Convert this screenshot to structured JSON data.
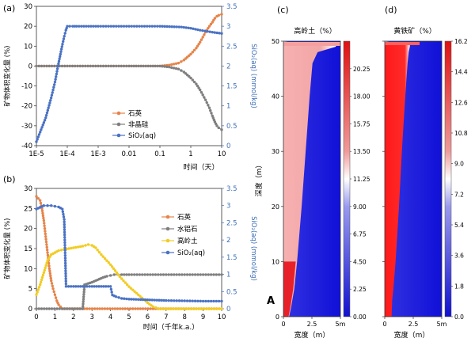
{
  "colors": {
    "quartz": "#e6844a",
    "amorphous": "#7f7f7f",
    "sio2": "#4a72c4",
    "gibbsite": "#7f7f7f",
    "kaolinite": "#f2cc22",
    "axis_right": "#3e6fb6",
    "red": "#e8202a",
    "white": "#ffffff",
    "blue": "#1f1fd8"
  },
  "chart_data": [
    {
      "id": "a",
      "type": "line",
      "panel_label": "(a)",
      "xlabel": "时间（天）",
      "ylabel": "矿物体积变化量 (%)",
      "ylabel_right": "SiO₂(aq) (mmol/kg)",
      "x_scale": "log",
      "xlim": [
        1e-05,
        10
      ],
      "ylim": [
        -40,
        30
      ],
      "ylim_right": [
        0,
        3.5
      ],
      "x_ticks": [
        1e-05,
        0.0001,
        0.001,
        0.01,
        0.1,
        1,
        10
      ],
      "x_tick_labels": [
        "1E-5",
        "1E-4",
        "1E-3",
        "0.01",
        "0.1",
        "1",
        "10"
      ],
      "y_ticks": [
        -40,
        -30,
        -20,
        -10,
        0,
        10,
        20,
        30
      ],
      "y_tick_labels": [
        "-40",
        "-30",
        "-20",
        "-10",
        "0",
        "10",
        "20",
        "30"
      ],
      "y_ticks_right": [
        0,
        0.5,
        1,
        1.5,
        2,
        2.5,
        3,
        3.5
      ],
      "y_tick_labels_right": [
        "0",
        "0.5",
        "1",
        "1.5",
        "2",
        "2.5",
        "3",
        "3.5"
      ],
      "legend_position": "lower-left",
      "series": [
        {
          "name": "石英",
          "color": "quartz",
          "axis": "left",
          "x": [
            1e-05,
            0.0001,
            0.001,
            0.01,
            0.05,
            0.1,
            0.2,
            0.4,
            0.6,
            1,
            1.5,
            2,
            3,
            4,
            5,
            6,
            7,
            8,
            10
          ],
          "y": [
            0,
            0,
            0,
            0,
            0,
            0,
            0.5,
            1.5,
            3,
            6,
            9,
            12,
            17,
            20,
            22,
            24,
            25,
            25.5,
            26
          ]
        },
        {
          "name": "非晶硅",
          "color": "amorphous",
          "axis": "left",
          "x": [
            1e-05,
            0.0001,
            0.001,
            0.01,
            0.05,
            0.1,
            0.2,
            0.4,
            0.6,
            1,
            1.5,
            2,
            3,
            4,
            5,
            6,
            7,
            8,
            10
          ],
          "y": [
            0,
            0,
            0,
            0,
            0,
            0,
            -0.5,
            -1.5,
            -3,
            -6,
            -9,
            -12,
            -17,
            -21,
            -25,
            -28,
            -30,
            -31,
            -32
          ]
        },
        {
          "name": "SiO₂(aq)",
          "color": "sio2",
          "axis": "right",
          "x": [
            1e-05,
            2e-05,
            3e-05,
            4e-05,
            5e-05,
            6e-05,
            7e-05,
            8e-05,
            9e-05,
            0.0001,
            0.00012,
            0.00015,
            0.0002,
            0.001,
            0.01,
            0.1,
            0.5,
            1,
            2,
            5,
            10
          ],
          "y": [
            0.1,
            0.7,
            1.2,
            1.6,
            2.0,
            2.3,
            2.55,
            2.75,
            2.9,
            3.0,
            3.0,
            3.0,
            3.0,
            3.0,
            3.0,
            3.0,
            2.98,
            2.95,
            2.9,
            2.85,
            2.82
          ]
        }
      ]
    },
    {
      "id": "b",
      "type": "line",
      "panel_label": "(b)",
      "xlabel": "时间（千年k.a.）",
      "ylabel": "矿物体积变化量 (%)",
      "ylabel_right": "SiO₂(aq) (mmol/kg)",
      "x_scale": "linear",
      "xlim": [
        0,
        10
      ],
      "ylim": [
        0,
        30
      ],
      "ylim_right": [
        0,
        3.5
      ],
      "x_ticks": [
        0,
        1,
        2,
        3,
        4,
        5,
        6,
        7,
        8,
        9,
        10
      ],
      "x_tick_labels": [
        "0",
        "1",
        "2",
        "3",
        "4",
        "5",
        "6",
        "7",
        "8",
        "9",
        "10"
      ],
      "y_ticks": [
        0,
        5,
        10,
        15,
        20,
        25,
        30
      ],
      "y_tick_labels": [
        "0",
        "5",
        "10",
        "15",
        "20",
        "25",
        "30"
      ],
      "y_ticks_right": [
        0,
        0.5,
        1,
        1.5,
        2,
        2.5,
        3,
        3.5
      ],
      "y_tick_labels_right": [
        "0",
        "0.5",
        "1",
        "1.5",
        "2",
        "2.5",
        "3",
        "3.5"
      ],
      "legend_position": "upper-right",
      "series": [
        {
          "name": "石英",
          "color": "quartz",
          "axis": "left",
          "x": [
            0,
            0.1,
            0.2,
            0.3,
            0.4,
            0.5,
            0.6,
            0.7,
            0.8,
            0.9,
            1.0,
            1.1,
            1.2,
            1.3,
            1.4,
            1.5,
            10
          ],
          "y": [
            28,
            27.5,
            27,
            25,
            22,
            18,
            14,
            10,
            7,
            5,
            3.5,
            2,
            1,
            0.5,
            0,
            0,
            0
          ]
        },
        {
          "name": "水铝石",
          "color": "gibbsite",
          "axis": "left",
          "x": [
            0,
            2.5,
            2.6,
            2.8,
            3.0,
            3.2,
            3.4,
            3.6,
            3.8,
            4.0,
            4.2,
            4.4,
            4.6,
            5,
            6,
            7,
            8,
            9,
            10
          ],
          "y": [
            0,
            0,
            6,
            6.3,
            6.6,
            7.0,
            7.4,
            7.8,
            8.1,
            8.3,
            8.5,
            8.5,
            8.5,
            8.5,
            8.5,
            8.5,
            8.5,
            8.5,
            8.5
          ]
        },
        {
          "name": "高岭土",
          "color": "kaolinite",
          "axis": "left",
          "x": [
            0,
            0.2,
            0.4,
            0.6,
            0.8,
            1.0,
            1.2,
            1.5,
            2.0,
            2.5,
            2.8,
            3.0,
            3.2,
            3.5,
            4.0,
            4.5,
            5.0,
            5.5,
            6.0,
            6.3,
            6.6,
            10
          ],
          "y": [
            3.5,
            6,
            9,
            12,
            13.5,
            14,
            14.5,
            14.8,
            15.2,
            15.6,
            16,
            15.8,
            15.2,
            13.5,
            11,
            8,
            5.5,
            3.5,
            1.5,
            0.5,
            0,
            0
          ]
        },
        {
          "name": "SiO₂(aq)",
          "color": "sio2",
          "axis": "right",
          "x": [
            0,
            0.2,
            0.4,
            0.6,
            0.8,
            1.0,
            1.2,
            1.4,
            1.5,
            1.6,
            2.0,
            2.5,
            2.6,
            3.0,
            3.5,
            4.0,
            4.1,
            4.3,
            4.6,
            5.0,
            5.5,
            6.0,
            6.5,
            7.0,
            8.0,
            9.0,
            10
          ],
          "y": [
            2.9,
            2.95,
            3.0,
            3.0,
            3.0,
            2.98,
            2.96,
            2.9,
            2.6,
            0.65,
            0.65,
            0.65,
            0.65,
            0.65,
            0.65,
            0.65,
            0.4,
            0.35,
            0.3,
            0.28,
            0.27,
            0.26,
            0.25,
            0.24,
            0.23,
            0.22,
            0.22
          ]
        }
      ]
    },
    {
      "id": "c",
      "type": "heatmap",
      "panel_label": "(c)",
      "title": "高岭土（%）",
      "xlabel": "宽度（m）",
      "ylabel": "深度（m）",
      "xlim": [
        0,
        5
      ],
      "ylim": [
        0,
        50
      ],
      "x_ticks": [
        0,
        2.5,
        5
      ],
      "x_tick_labels": [
        "0",
        "2.5",
        "5m"
      ],
      "y_ticks": [
        0,
        10,
        20,
        30,
        40,
        50
      ],
      "y_tick_labels": [
        "0",
        "10",
        "20",
        "30",
        "40",
        "50"
      ],
      "colorbar_range": [
        0,
        22.5
      ],
      "colorbar_ticks": [
        "0.00",
        "2.25",
        "4.50",
        "6.75",
        "9.00",
        "11.25",
        "13.50",
        "15.75",
        "18.00",
        "20.25"
      ],
      "front_width_m": [
        [
          0,
          0.5
        ],
        [
          2,
          0.7
        ],
        [
          5,
          0.95
        ],
        [
          10,
          1.2
        ],
        [
          20,
          1.6
        ],
        [
          30,
          1.95
        ],
        [
          40,
          2.3
        ],
        [
          46,
          2.55
        ],
        [
          48,
          3.0
        ],
        [
          49,
          4.6
        ]
      ],
      "annotation": "A"
    },
    {
      "id": "d",
      "type": "heatmap",
      "panel_label": "(d)",
      "title": "黄铁矿（%）",
      "xlabel": "宽度（m）",
      "ylabel": "",
      "xlim": [
        0,
        5
      ],
      "ylim": [
        0,
        50
      ],
      "x_ticks": [
        0,
        2.5,
        5
      ],
      "x_tick_labels": [
        "0",
        "2.5",
        "5m"
      ],
      "y_ticks": [
        0,
        10,
        20,
        30,
        40,
        50
      ],
      "y_tick_labels": [
        "0",
        "10",
        "20",
        "30",
        "40",
        "50"
      ],
      "colorbar_range": [
        0,
        16.2
      ],
      "colorbar_ticks": [
        "0.0",
        "1.8",
        "3.6",
        "5.4",
        "7.2",
        "9.0",
        "10.8",
        "12.6",
        "14.4",
        "16.2"
      ],
      "front_width_m": [
        [
          0,
          0.6
        ],
        [
          3,
          0.65
        ],
        [
          5,
          0.75
        ],
        [
          10,
          0.95
        ],
        [
          20,
          1.25
        ],
        [
          30,
          1.5
        ],
        [
          40,
          1.8
        ],
        [
          46,
          2.0
        ],
        [
          48,
          2.1
        ],
        [
          49,
          2.2
        ]
      ]
    }
  ]
}
